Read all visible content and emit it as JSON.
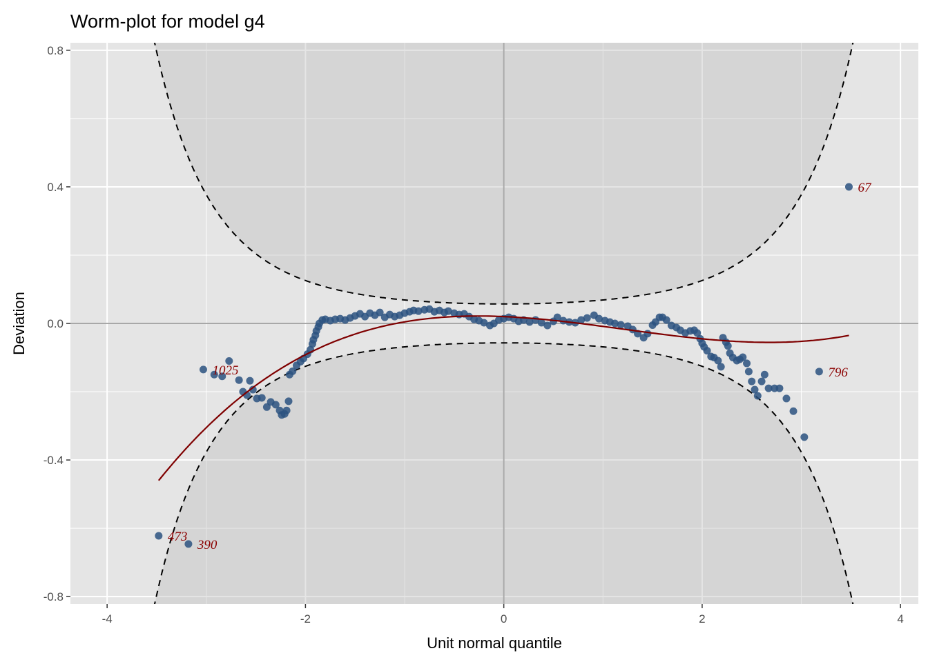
{
  "chart_data": {
    "type": "scatter",
    "title": "Worm-plot for model g4",
    "xlabel": "Unit normal quantile",
    "ylabel": "Deviation",
    "xlim": [
      -4.37,
      4.18
    ],
    "ylim": [
      -0.822,
      0.822
    ],
    "x_ticks": [
      -4,
      -2,
      0,
      2,
      4
    ],
    "x_tick_labels": [
      "-4",
      "-2",
      "0",
      "2",
      "4"
    ],
    "y_ticks": [
      0.8,
      0.4,
      0.0,
      -0.4,
      -0.8
    ],
    "y_tick_labels": [
      "0.8",
      "0.4",
      "0.0",
      "-0.4",
      "-0.8"
    ],
    "x_minor": [
      -3,
      -1,
      1,
      3
    ],
    "y_minor": [
      0.6,
      0.2,
      -0.2,
      -0.6
    ],
    "grid": true,
    "confidence_band": {
      "n": 1857,
      "level_z": 1.96,
      "shade_x_range": [
        -3.98,
        3.78
      ]
    },
    "fit_curve": {
      "type": "cubic",
      "coefficients": [
        0.02,
        -0.0127,
        -0.0221,
        0.00609
      ],
      "x_range": [
        -3.48,
        3.48
      ]
    },
    "points": [
      [
        -3.03,
        -0.135
      ],
      [
        -2.92,
        -0.15
      ],
      [
        -2.84,
        -0.155
      ],
      [
        -2.77,
        -0.11
      ],
      [
        -2.67,
        -0.166
      ],
      [
        -2.63,
        -0.2
      ],
      [
        -2.59,
        -0.21
      ],
      [
        -2.56,
        -0.168
      ],
      [
        -2.53,
        -0.194
      ],
      [
        -2.49,
        -0.22
      ],
      [
        -2.44,
        -0.218
      ],
      [
        -2.39,
        -0.245
      ],
      [
        -2.35,
        -0.23
      ],
      [
        -2.3,
        -0.238
      ],
      [
        -2.26,
        -0.255
      ],
      [
        -2.24,
        -0.268
      ],
      [
        -2.21,
        -0.265
      ],
      [
        -2.19,
        -0.255
      ],
      [
        -2.17,
        -0.228
      ],
      [
        -2.16,
        -0.15
      ],
      [
        -2.13,
        -0.14
      ],
      [
        -2.09,
        -0.123
      ],
      [
        -2.05,
        -0.112
      ],
      [
        -2.02,
        -0.103
      ],
      [
        -1.98,
        -0.09
      ],
      [
        -1.95,
        -0.077
      ],
      [
        -1.93,
        -0.06
      ],
      [
        -1.92,
        -0.048
      ],
      [
        -1.9,
        -0.035
      ],
      [
        -1.89,
        -0.022
      ],
      [
        -1.87,
        -0.01
      ],
      [
        -1.86,
        0.0
      ],
      [
        -1.83,
        0.01
      ],
      [
        -1.8,
        0.012
      ],
      [
        -1.75,
        0.008
      ],
      [
        -1.7,
        0.012
      ],
      [
        -1.65,
        0.014
      ],
      [
        -1.6,
        0.01
      ],
      [
        -1.55,
        0.016
      ],
      [
        -1.5,
        0.022
      ],
      [
        -1.45,
        0.028
      ],
      [
        -1.4,
        0.02
      ],
      [
        -1.35,
        0.03
      ],
      [
        -1.3,
        0.024
      ],
      [
        -1.25,
        0.032
      ],
      [
        -1.2,
        0.018
      ],
      [
        -1.15,
        0.026
      ],
      [
        -1.1,
        0.02
      ],
      [
        -1.05,
        0.024
      ],
      [
        -1.0,
        0.03
      ],
      [
        -0.95,
        0.034
      ],
      [
        -0.91,
        0.038
      ],
      [
        -0.86,
        0.036
      ],
      [
        -0.8,
        0.04
      ],
      [
        -0.75,
        0.042
      ],
      [
        -0.7,
        0.034
      ],
      [
        -0.65,
        0.038
      ],
      [
        -0.6,
        0.032
      ],
      [
        -0.56,
        0.036
      ],
      [
        -0.5,
        0.03
      ],
      [
        -0.45,
        0.026
      ],
      [
        -0.4,
        0.028
      ],
      [
        -0.35,
        0.02
      ],
      [
        -0.3,
        0.012
      ],
      [
        -0.25,
        0.008
      ],
      [
        -0.2,
        0.002
      ],
      [
        -0.14,
        -0.006
      ],
      [
        -0.1,
        0.0
      ],
      [
        -0.05,
        0.01
      ],
      [
        0.0,
        0.014
      ],
      [
        0.05,
        0.018
      ],
      [
        0.1,
        0.014
      ],
      [
        0.15,
        0.006
      ],
      [
        0.2,
        0.01
      ],
      [
        0.26,
        0.004
      ],
      [
        0.32,
        0.01
      ],
      [
        0.38,
        0.002
      ],
      [
        0.44,
        -0.006
      ],
      [
        0.5,
        0.006
      ],
      [
        0.54,
        0.018
      ],
      [
        0.6,
        0.008
      ],
      [
        0.66,
        0.004
      ],
      [
        0.72,
        0.002
      ],
      [
        0.78,
        0.01
      ],
      [
        0.84,
        0.016
      ],
      [
        0.91,
        0.024
      ],
      [
        0.96,
        0.014
      ],
      [
        1.02,
        0.008
      ],
      [
        1.07,
        0.004
      ],
      [
        1.12,
        0.0
      ],
      [
        1.18,
        -0.004
      ],
      [
        1.25,
        -0.008
      ],
      [
        1.3,
        -0.018
      ],
      [
        1.35,
        -0.03
      ],
      [
        1.41,
        -0.042
      ],
      [
        1.45,
        -0.03
      ],
      [
        1.5,
        -0.005
      ],
      [
        1.53,
        0.004
      ],
      [
        1.57,
        0.018
      ],
      [
        1.6,
        0.018
      ],
      [
        1.64,
        0.01
      ],
      [
        1.69,
        -0.006
      ],
      [
        1.74,
        -0.012
      ],
      [
        1.78,
        -0.02
      ],
      [
        1.83,
        -0.028
      ],
      [
        1.88,
        -0.022
      ],
      [
        1.92,
        -0.02
      ],
      [
        1.95,
        -0.028
      ],
      [
        1.98,
        -0.045
      ],
      [
        2.0,
        -0.058
      ],
      [
        2.02,
        -0.069
      ],
      [
        2.05,
        -0.08
      ],
      [
        2.09,
        -0.097
      ],
      [
        2.12,
        -0.1
      ],
      [
        2.16,
        -0.109
      ],
      [
        2.19,
        -0.127
      ],
      [
        2.21,
        -0.042
      ],
      [
        2.24,
        -0.055
      ],
      [
        2.26,
        -0.066
      ],
      [
        2.28,
        -0.087
      ],
      [
        2.31,
        -0.1
      ],
      [
        2.35,
        -0.109
      ],
      [
        2.38,
        -0.105
      ],
      [
        2.41,
        -0.099
      ],
      [
        2.45,
        -0.117
      ],
      [
        2.47,
        -0.141
      ],
      [
        2.5,
        -0.17
      ],
      [
        2.53,
        -0.194
      ],
      [
        2.56,
        -0.212
      ],
      [
        2.6,
        -0.17
      ],
      [
        2.63,
        -0.15
      ],
      [
        2.67,
        -0.19
      ],
      [
        2.73,
        -0.19
      ],
      [
        2.78,
        -0.19
      ],
      [
        2.85,
        -0.22
      ],
      [
        2.92,
        -0.257
      ],
      [
        3.03,
        -0.333
      ],
      [
        3.18,
        -0.141
      ],
      [
        3.48,
        0.4
      ],
      [
        -3.48,
        -0.622
      ],
      [
        -3.18,
        -0.646
      ]
    ],
    "labeled_points": [
      {
        "label": "1025",
        "x": -3.03,
        "y": -0.135
      },
      {
        "label": "796",
        "x": 3.18,
        "y": -0.141
      },
      {
        "label": "67",
        "x": 3.48,
        "y": 0.4
      },
      {
        "label": "473",
        "x": -3.48,
        "y": -0.622
      },
      {
        "label": "390",
        "x": -3.18,
        "y": -0.646
      }
    ],
    "colors": {
      "panel": "#e5e5e5",
      "shade": "#bdbdbd",
      "points": "#2b5280",
      "fit": "#7f0000",
      "labels": "#8b0000",
      "refline": "#a8a8a8"
    }
  }
}
